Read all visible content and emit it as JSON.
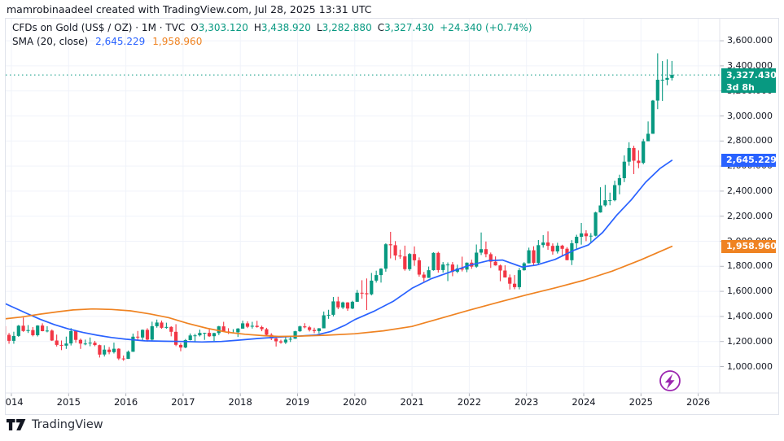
{
  "header": {
    "attribution": "mamrobinaadeel created with TradingView.com, Jul 28, 2025 13:31 UTC"
  },
  "legend": {
    "symbol_title": "CFDs on Gold (US$ / OZ) · 1M · TVC",
    "ohlc_parts": [
      {
        "label": "O",
        "value": "3,303.120"
      },
      {
        "label": "H",
        "value": "3,438.920"
      },
      {
        "label": "L",
        "value": "3,282.880"
      },
      {
        "label": "C",
        "value": "3,327.430"
      }
    ],
    "change": "+24.340 (+0.74%)",
    "sma_label": "SMA (20, close)",
    "sma_values": [
      "2,645.229",
      "1,958.960"
    ]
  },
  "badges": {
    "last": {
      "price": "3,327.430",
      "value": 3327.43,
      "countdown": "3d 8h",
      "color": "#089981"
    },
    "sma_fast": {
      "price": "2,645.229",
      "value": 2645.229,
      "color": "#2962ff"
    },
    "sma_slow": {
      "price": "1,958.960",
      "value": 1958.96,
      "color": "#ef8322"
    }
  },
  "footer": {
    "brand": "TradingView"
  },
  "chart_data": {
    "type": "candlestick",
    "title": "CFDs on Gold (US$ / OZ) · 1M · TVC",
    "interval": "1M",
    "ylim": [
      950,
      3850
    ],
    "grid": true,
    "y_ticks": [
      {
        "label": "3,800.000",
        "value": 3800
      },
      {
        "label": "3,600.000",
        "value": 3600
      },
      {
        "label": "3,400.000",
        "value": 3400
      },
      {
        "label": "3,200.000",
        "value": 3200
      },
      {
        "label": "3,000.000",
        "value": 3000
      },
      {
        "label": "2,800.000",
        "value": 2800
      },
      {
        "label": "2,600.000",
        "value": 2600
      },
      {
        "label": "2,400.000",
        "value": 2400
      },
      {
        "label": "2,200.000",
        "value": 2200
      },
      {
        "label": "2,000.000",
        "value": 2000
      },
      {
        "label": "1,800.000",
        "value": 1800
      },
      {
        "label": "1,600.000",
        "value": 1600
      },
      {
        "label": "1,400.000",
        "value": 1400
      },
      {
        "label": "1,200.000",
        "value": 1200
      },
      {
        "label": "1,000.000",
        "value": 1000
      }
    ],
    "years": [
      2014,
      2015,
      2016,
      2017,
      2018,
      2019,
      2020,
      2021,
      2022,
      2023,
      2024,
      2025,
      2026
    ],
    "last_close": 3327.43,
    "colors": {
      "up": "#089981",
      "down": "#f23645",
      "sma_fast": "#2962ff",
      "sma_slow": "#ef8322",
      "grid": "#f0f3fa",
      "axis_line": "#e0e3eb",
      "tick": "#b2b5be",
      "close_line": "#089981",
      "boost": "#9c27b0"
    },
    "candles_start": "2013-11",
    "candles_note": "monthly OHLC, one row per month [open, high, low, close]",
    "candles": [
      [
        1323,
        1327,
        1227,
        1253
      ],
      [
        1253,
        1268,
        1182,
        1205
      ],
      [
        1205,
        1278,
        1182,
        1244
      ],
      [
        1244,
        1332,
        1237,
        1326
      ],
      [
        1326,
        1392,
        1277,
        1284
      ],
      [
        1284,
        1331,
        1268,
        1291
      ],
      [
        1291,
        1315,
        1241,
        1250
      ],
      [
        1250,
        1330,
        1240,
        1327
      ],
      [
        1327,
        1345,
        1281,
        1282
      ],
      [
        1282,
        1322,
        1273,
        1287
      ],
      [
        1287,
        1296,
        1204,
        1208
      ],
      [
        1208,
        1255,
        1160,
        1173
      ],
      [
        1173,
        1208,
        1131,
        1167
      ],
      [
        1167,
        1239,
        1141,
        1184
      ],
      [
        1184,
        1307,
        1168,
        1283
      ],
      [
        1283,
        1285,
        1190,
        1213
      ],
      [
        1213,
        1223,
        1141,
        1183
      ],
      [
        1183,
        1215,
        1170,
        1184
      ],
      [
        1184,
        1232,
        1162,
        1190
      ],
      [
        1190,
        1205,
        1162,
        1171
      ],
      [
        1171,
        1175,
        1072,
        1096
      ],
      [
        1096,
        1170,
        1080,
        1135
      ],
      [
        1135,
        1156,
        1098,
        1115
      ],
      [
        1115,
        1191,
        1104,
        1142
      ],
      [
        1142,
        1146,
        1052,
        1064
      ],
      [
        1064,
        1088,
        1046,
        1061
      ],
      [
        1061,
        1128,
        1061,
        1118
      ],
      [
        1118,
        1263,
        1117,
        1238
      ],
      [
        1238,
        1284,
        1208,
        1232
      ],
      [
        1232,
        1296,
        1209,
        1293
      ],
      [
        1293,
        1306,
        1199,
        1215
      ],
      [
        1215,
        1358,
        1200,
        1322
      ],
      [
        1322,
        1375,
        1310,
        1351
      ],
      [
        1351,
        1367,
        1302,
        1309
      ],
      [
        1309,
        1350,
        1302,
        1316
      ],
      [
        1316,
        1322,
        1241,
        1277
      ],
      [
        1277,
        1338,
        1163,
        1173
      ],
      [
        1173,
        1188,
        1122,
        1152
      ],
      [
        1152,
        1220,
        1146,
        1211
      ],
      [
        1211,
        1264,
        1208,
        1248
      ],
      [
        1248,
        1261,
        1194,
        1249
      ],
      [
        1249,
        1295,
        1240,
        1268
      ],
      [
        1268,
        1270,
        1213,
        1269
      ],
      [
        1269,
        1296,
        1236,
        1242
      ],
      [
        1242,
        1270,
        1204,
        1267
      ],
      [
        1267,
        1325,
        1251,
        1321
      ],
      [
        1321,
        1357,
        1277,
        1280
      ],
      [
        1280,
        1306,
        1260,
        1271
      ],
      [
        1271,
        1298,
        1263,
        1273
      ],
      [
        1273,
        1307,
        1236,
        1303
      ],
      [
        1303,
        1366,
        1302,
        1345
      ],
      [
        1345,
        1361,
        1307,
        1318
      ],
      [
        1318,
        1357,
        1303,
        1325
      ],
      [
        1325,
        1365,
        1310,
        1315
      ],
      [
        1315,
        1326,
        1282,
        1298
      ],
      [
        1298,
        1309,
        1247,
        1253
      ],
      [
        1253,
        1266,
        1211,
        1224
      ],
      [
        1224,
        1235,
        1160,
        1201
      ],
      [
        1201,
        1214,
        1182,
        1192
      ],
      [
        1192,
        1243,
        1180,
        1215
      ],
      [
        1215,
        1237,
        1196,
        1222
      ],
      [
        1222,
        1285,
        1221,
        1282
      ],
      [
        1282,
        1326,
        1277,
        1321
      ],
      [
        1321,
        1346,
        1305,
        1313
      ],
      [
        1313,
        1324,
        1280,
        1292
      ],
      [
        1292,
        1310,
        1266,
        1283
      ],
      [
        1283,
        1307,
        1265,
        1305
      ],
      [
        1305,
        1439,
        1305,
        1409
      ],
      [
        1409,
        1453,
        1381,
        1413
      ],
      [
        1413,
        1555,
        1400,
        1520
      ],
      [
        1520,
        1557,
        1458,
        1472
      ],
      [
        1472,
        1518,
        1459,
        1512
      ],
      [
        1512,
        1514,
        1445,
        1463
      ],
      [
        1463,
        1525,
        1458,
        1517
      ],
      [
        1517,
        1611,
        1517,
        1589
      ],
      [
        1589,
        1689,
        1541,
        1585
      ],
      [
        1585,
        1703,
        1451,
        1577
      ],
      [
        1577,
        1747,
        1568,
        1686
      ],
      [
        1686,
        1765,
        1670,
        1730
      ],
      [
        1730,
        1785,
        1670,
        1781
      ],
      [
        1781,
        1984,
        1757,
        1976
      ],
      [
        1976,
        2075,
        1863,
        1968
      ],
      [
        1968,
        2001,
        1849,
        1886
      ],
      [
        1886,
        1933,
        1860,
        1879
      ],
      [
        1879,
        1965,
        1765,
        1777
      ],
      [
        1777,
        1906,
        1764,
        1898
      ],
      [
        1898,
        1959,
        1804,
        1848
      ],
      [
        1848,
        1871,
        1717,
        1734
      ],
      [
        1734,
        1755,
        1677,
        1708
      ],
      [
        1708,
        1798,
        1707,
        1769
      ],
      [
        1769,
        1912,
        1765,
        1907
      ],
      [
        1907,
        1916,
        1750,
        1770
      ],
      [
        1770,
        1834,
        1750,
        1814
      ],
      [
        1814,
        1831,
        1682,
        1814
      ],
      [
        1814,
        1834,
        1721,
        1757
      ],
      [
        1757,
        1813,
        1746,
        1783
      ],
      [
        1783,
        1877,
        1759,
        1774
      ],
      [
        1774,
        1831,
        1753,
        1829
      ],
      [
        1829,
        1853,
        1780,
        1797
      ],
      [
        1797,
        1974,
        1788,
        1909
      ],
      [
        1909,
        2070,
        1890,
        1937
      ],
      [
        1937,
        1998,
        1872,
        1897
      ],
      [
        1897,
        1910,
        1787,
        1837
      ],
      [
        1837,
        1879,
        1805,
        1807
      ],
      [
        1807,
        1814,
        1681,
        1766
      ],
      [
        1766,
        1808,
        1710,
        1711
      ],
      [
        1711,
        1735,
        1615,
        1661
      ],
      [
        1661,
        1730,
        1617,
        1634
      ],
      [
        1634,
        1787,
        1616,
        1769
      ],
      [
        1769,
        1833,
        1765,
        1824
      ],
      [
        1824,
        1949,
        1823,
        1928
      ],
      [
        1928,
        1960,
        1804,
        1827
      ],
      [
        1827,
        2010,
        1809,
        1969
      ],
      [
        1969,
        2049,
        1949,
        1990
      ],
      [
        1990,
        2079,
        1932,
        1963
      ],
      [
        1963,
        1983,
        1893,
        1919
      ],
      [
        1919,
        1988,
        1902,
        1965
      ],
      [
        1965,
        1972,
        1885,
        1940
      ],
      [
        1940,
        1953,
        1848,
        1849
      ],
      [
        1849,
        2009,
        1810,
        1984
      ],
      [
        1984,
        2052,
        1931,
        2036
      ],
      [
        2036,
        2146,
        1973,
        2063
      ],
      [
        2063,
        2088,
        2001,
        2040
      ],
      [
        2040,
        2065,
        1984,
        2044
      ],
      [
        2044,
        2236,
        2039,
        2230
      ],
      [
        2230,
        2431,
        2228,
        2286
      ],
      [
        2286,
        2450,
        2277,
        2327
      ],
      [
        2327,
        2388,
        2287,
        2327
      ],
      [
        2327,
        2483,
        2319,
        2448
      ],
      [
        2448,
        2531,
        2375,
        2503
      ],
      [
        2503,
        2685,
        2472,
        2635
      ],
      [
        2635,
        2790,
        2603,
        2744
      ],
      [
        2744,
        2762,
        2536,
        2643
      ],
      [
        2643,
        2726,
        2583,
        2625
      ],
      [
        2625,
        2817,
        2614,
        2798
      ],
      [
        2798,
        2956,
        2832,
        2858
      ],
      [
        2858,
        3128,
        2857,
        3123
      ],
      [
        3123,
        3500,
        3054,
        3289
      ],
      [
        3289,
        3438,
        3120,
        3289
      ],
      [
        3289,
        3452,
        3245,
        3303
      ],
      [
        3303.12,
        3438.92,
        3282.88,
        3327.43
      ]
    ],
    "series": [
      {
        "name": "SMA 20 (fast, blue)",
        "last_value": 2645.229,
        "points": [
          [
            2013.83,
            1515
          ],
          [
            2014.0,
            1480
          ],
          [
            2014.25,
            1428
          ],
          [
            2014.5,
            1378
          ],
          [
            2014.75,
            1335
          ],
          [
            2015.0,
            1300
          ],
          [
            2015.25,
            1272
          ],
          [
            2015.5,
            1250
          ],
          [
            2015.75,
            1232
          ],
          [
            2016.0,
            1218
          ],
          [
            2016.33,
            1205
          ],
          [
            2016.67,
            1202
          ],
          [
            2017.0,
            1200
          ],
          [
            2017.33,
            1196
          ],
          [
            2017.67,
            1200
          ],
          [
            2018.0,
            1212
          ],
          [
            2018.33,
            1225
          ],
          [
            2018.67,
            1235
          ],
          [
            2019.0,
            1242
          ],
          [
            2019.33,
            1252
          ],
          [
            2019.58,
            1280
          ],
          [
            2019.83,
            1330
          ],
          [
            2020.0,
            1375
          ],
          [
            2020.33,
            1440
          ],
          [
            2020.67,
            1520
          ],
          [
            2021.0,
            1625
          ],
          [
            2021.33,
            1700
          ],
          [
            2021.67,
            1755
          ],
          [
            2022.0,
            1808
          ],
          [
            2022.33,
            1845
          ],
          [
            2022.58,
            1850
          ],
          [
            2022.92,
            1795
          ],
          [
            2023.17,
            1810
          ],
          [
            2023.5,
            1855
          ],
          [
            2023.83,
            1928
          ],
          [
            2024.08,
            1970
          ],
          [
            2024.33,
            2070
          ],
          [
            2024.58,
            2210
          ],
          [
            2024.83,
            2330
          ],
          [
            2025.08,
            2470
          ],
          [
            2025.33,
            2580
          ],
          [
            2025.54,
            2645.2
          ]
        ]
      },
      {
        "name": "SMA slow (orange)",
        "last_value": 1958.96,
        "points": [
          [
            2013.83,
            1378
          ],
          [
            2014.17,
            1395
          ],
          [
            2014.5,
            1418
          ],
          [
            2014.83,
            1438
          ],
          [
            2015.08,
            1452
          ],
          [
            2015.42,
            1460
          ],
          [
            2015.75,
            1456
          ],
          [
            2016.08,
            1445
          ],
          [
            2016.42,
            1420
          ],
          [
            2016.75,
            1390
          ],
          [
            2017.08,
            1345
          ],
          [
            2017.42,
            1305
          ],
          [
            2017.75,
            1275
          ],
          [
            2018.08,
            1258
          ],
          [
            2018.42,
            1246
          ],
          [
            2018.67,
            1240
          ],
          [
            2019.0,
            1242
          ],
          [
            2019.5,
            1250
          ],
          [
            2020.0,
            1262
          ],
          [
            2020.5,
            1285
          ],
          [
            2021.0,
            1320
          ],
          [
            2021.5,
            1385
          ],
          [
            2022.0,
            1450
          ],
          [
            2022.5,
            1512
          ],
          [
            2023.0,
            1572
          ],
          [
            2023.5,
            1628
          ],
          [
            2024.0,
            1688
          ],
          [
            2024.5,
            1762
          ],
          [
            2025.0,
            1852
          ],
          [
            2025.54,
            1958.9
          ]
        ]
      }
    ]
  }
}
